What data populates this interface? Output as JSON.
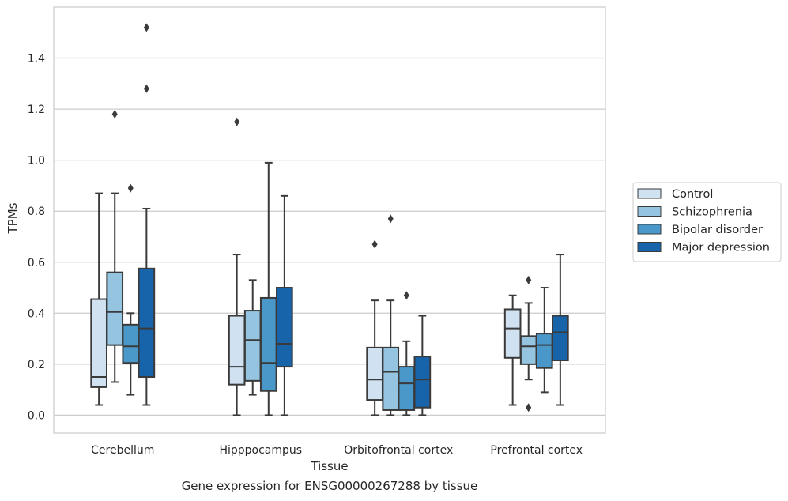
{
  "caption": "Gene expression for ENSG00000267288 by tissue",
  "chart_data": {
    "type": "box",
    "xlabel": "Tissue",
    "ylabel": "TPMs",
    "ylim": [
      -0.07,
      1.6
    ],
    "yticks": [
      0.0,
      0.2,
      0.4,
      0.6,
      0.8,
      1.0,
      1.2,
      1.4
    ],
    "ytick_labels": [
      "0.0",
      "0.2",
      "0.4",
      "0.6",
      "0.8",
      "1.0",
      "1.2",
      "1.4"
    ],
    "grid": "horizontal",
    "legend_position": "right",
    "categories": [
      "Cerebellum",
      "Hipppocampus",
      "Orbitofrontal cortex",
      "Prefrontal cortex"
    ],
    "series": [
      {
        "name": "Control",
        "color": "#d0e1f2",
        "boxes": [
          {
            "whislo": 0.04,
            "q1": 0.11,
            "med": 0.15,
            "q3": 0.455,
            "whishi": 0.87,
            "fliers": []
          },
          {
            "whislo": 0.0,
            "q1": 0.12,
            "med": 0.19,
            "q3": 0.39,
            "whishi": 0.63,
            "fliers": [
              1.15
            ]
          },
          {
            "whislo": 0.0,
            "q1": 0.06,
            "med": 0.14,
            "q3": 0.265,
            "whishi": 0.45,
            "fliers": [
              0.67
            ]
          },
          {
            "whislo": 0.04,
            "q1": 0.225,
            "med": 0.34,
            "q3": 0.415,
            "whishi": 0.47,
            "fliers": []
          }
        ]
      },
      {
        "name": "Schizophrenia",
        "color": "#94c4df",
        "boxes": [
          {
            "whislo": 0.13,
            "q1": 0.275,
            "med": 0.405,
            "q3": 0.56,
            "whishi": 0.87,
            "fliers": [
              1.18
            ]
          },
          {
            "whislo": 0.08,
            "q1": 0.135,
            "med": 0.295,
            "q3": 0.41,
            "whishi": 0.53,
            "fliers": []
          },
          {
            "whislo": 0.0,
            "q1": 0.02,
            "med": 0.17,
            "q3": 0.265,
            "whishi": 0.45,
            "fliers": [
              0.77
            ]
          },
          {
            "whislo": 0.14,
            "q1": 0.2,
            "med": 0.27,
            "q3": 0.31,
            "whishi": 0.44,
            "fliers": [
              0.53,
              0.03
            ]
          }
        ]
      },
      {
        "name": "Bipolar disorder",
        "color": "#4a98c9",
        "boxes": [
          {
            "whislo": 0.08,
            "q1": 0.205,
            "med": 0.27,
            "q3": 0.355,
            "whishi": 0.4,
            "fliers": [
              0.89
            ]
          },
          {
            "whislo": 0.0,
            "q1": 0.095,
            "med": 0.205,
            "q3": 0.46,
            "whishi": 0.99,
            "fliers": []
          },
          {
            "whislo": 0.0,
            "q1": 0.02,
            "med": 0.125,
            "q3": 0.19,
            "whishi": 0.29,
            "fliers": [
              0.47
            ]
          },
          {
            "whislo": 0.09,
            "q1": 0.185,
            "med": 0.275,
            "q3": 0.32,
            "whishi": 0.5,
            "fliers": []
          }
        ]
      },
      {
        "name": "Major depression",
        "color": "#1764ab",
        "boxes": [
          {
            "whislo": 0.04,
            "q1": 0.15,
            "med": 0.34,
            "q3": 0.575,
            "whishi": 0.81,
            "fliers": [
              1.28,
              1.52
            ]
          },
          {
            "whislo": 0.0,
            "q1": 0.19,
            "med": 0.28,
            "q3": 0.5,
            "whishi": 0.86,
            "fliers": []
          },
          {
            "whislo": 0.0,
            "q1": 0.03,
            "med": 0.14,
            "q3": 0.23,
            "whishi": 0.39,
            "fliers": []
          },
          {
            "whislo": 0.04,
            "q1": 0.215,
            "med": 0.325,
            "q3": 0.39,
            "whishi": 0.63,
            "fliers": []
          }
        ]
      }
    ]
  }
}
